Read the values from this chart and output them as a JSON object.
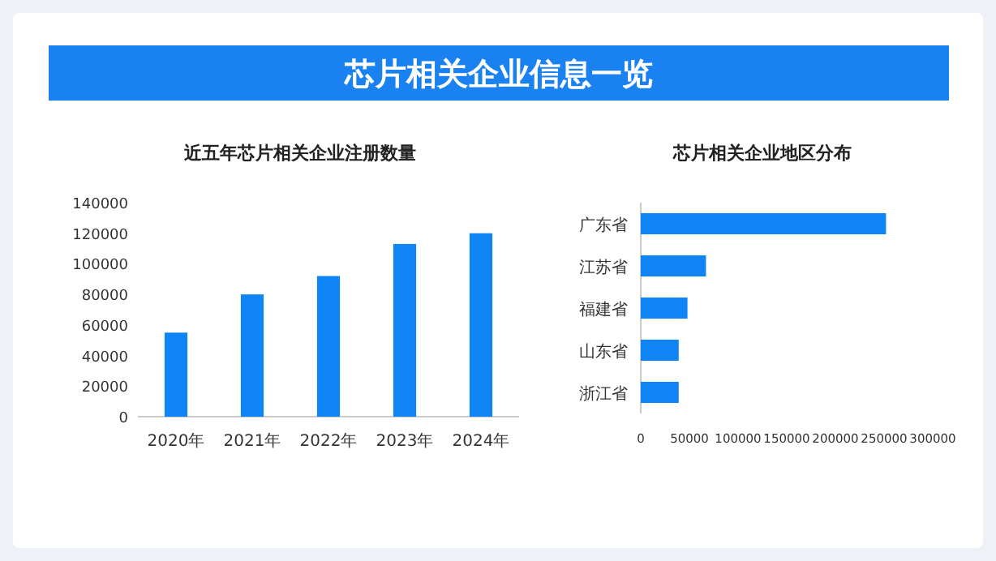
{
  "chart_data": [
    {
      "type": "other",
      "title": "芯片相关企业信息一览"
    },
    {
      "type": "bar",
      "title": "近五年芯片相关企业注册数量",
      "categories": [
        "2020年",
        "2021年",
        "2022年",
        "2023年",
        "2024年"
      ],
      "values": [
        55000,
        80000,
        92000,
        113000,
        120000
      ],
      "color": "#0f84f5",
      "ylim": [
        0,
        140000
      ],
      "yticks": [
        0,
        20000,
        40000,
        60000,
        80000,
        100000,
        120000,
        140000
      ]
    },
    {
      "type": "bar",
      "orientation": "horizontal",
      "title": "芯片相关企业地区分布",
      "categories": [
        "广东省",
        "江苏省",
        "福建省",
        "山东省",
        "浙江省"
      ],
      "values": [
        252000,
        67000,
        48000,
        39000,
        39000
      ],
      "color": "#0f84f5",
      "xlim": [
        0,
        300000
      ],
      "xticks": [
        0,
        50000,
        100000,
        150000,
        200000,
        250000,
        300000
      ]
    }
  ]
}
